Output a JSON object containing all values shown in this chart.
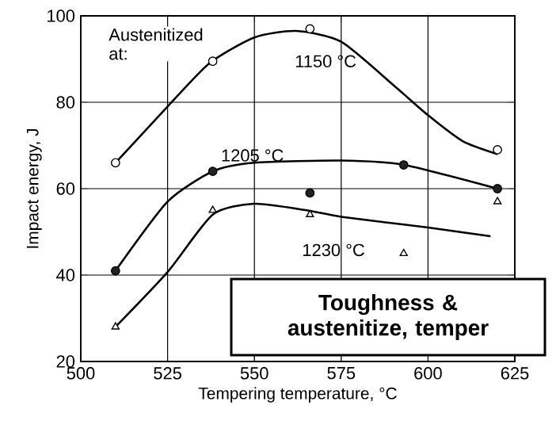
{
  "chart_data": {
    "type": "line",
    "title": "Toughness & austenitize, temper",
    "xlabel": "Tempering temperature, °C",
    "ylabel": "Impact energy, J",
    "xlim": [
      500,
      625
    ],
    "xticks": [
      500,
      525,
      550,
      575,
      600,
      625
    ],
    "ylim": [
      20,
      100
    ],
    "yticks": [
      20,
      40,
      60,
      80,
      100
    ],
    "grid": true,
    "series": [
      {
        "type": "scatter",
        "marker": "circle",
        "color": "#ffffff",
        "x": [
          510,
          538,
          566,
          620
        ],
        "values": [
          66,
          89.5,
          97,
          69
        ]
      },
      {
        "type": "scatter",
        "marker": "circle",
        "color": "#222222",
        "x": [
          510,
          538,
          566,
          593,
          620
        ],
        "values": [
          41,
          64,
          59,
          65.5,
          60
        ]
      },
      {
        "type": "scatter",
        "marker": "triangle",
        "color": "#ffffff",
        "x": [
          510,
          538,
          566,
          593,
          620
        ],
        "values": [
          28,
          55,
          54,
          45,
          57
        ]
      },
      {
        "name": "1150 °C",
        "marker": "none",
        "color": "#000000",
        "x": [
          510,
          525,
          537,
          550,
          562,
          575,
          590,
          600,
          610,
          620
        ],
        "values": [
          66,
          79,
          89,
          95,
          96.5,
          94,
          84,
          77,
          71,
          68
        ]
      },
      {
        "name": "1205 °C",
        "marker": "none",
        "color": "#000000",
        "x": [
          510,
          525,
          538,
          550,
          575,
          593,
          620
        ],
        "values": [
          41,
          57,
          64,
          66,
          66.5,
          65.5,
          60
        ]
      },
      {
        "name": "1230 °C",
        "marker": "none",
        "color": "#000000",
        "x": [
          510,
          525,
          538,
          550,
          565,
          575,
          600,
          618
        ],
        "values": [
          28,
          40.7,
          54,
          56.5,
          55,
          53.5,
          51,
          49
        ]
      }
    ],
    "annotations": [
      "Austenitized at:"
    ]
  }
}
